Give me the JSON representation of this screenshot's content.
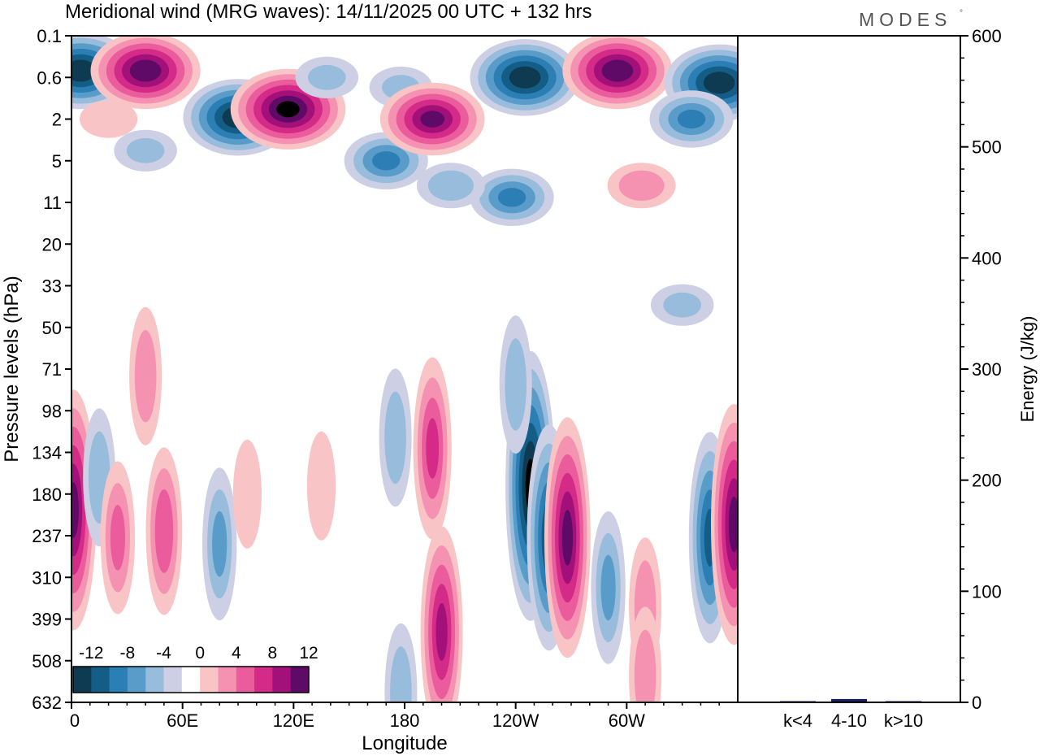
{
  "brand": "MODES",
  "brand_mark": "°",
  "chart_data": [
    {
      "type": "heatmap",
      "title": "Meridional wind (MRG waves):  14/11/2025  00 UTC  + 132 hrs",
      "xlabel": "Longitude",
      "ylabel": "Pressure levels (hPa)",
      "x_ticks": [
        "0",
        "60E",
        "120E",
        "180",
        "120W",
        "60W"
      ],
      "y_ticks": [
        "0.1",
        "0.6",
        "2",
        "5",
        "11",
        "20",
        "33",
        "50",
        "71",
        "98",
        "134",
        "180",
        "237",
        "310",
        "399",
        "508",
        "632"
      ],
      "colorbar": {
        "tick_labels": [
          "-12",
          "-8",
          "-4",
          "0",
          "4",
          "8",
          "12"
        ],
        "levels": [
          -14,
          -12,
          -10,
          -8,
          -6,
          -4,
          -2,
          2,
          4,
          6,
          8,
          10,
          12,
          14
        ],
        "colors": [
          "#0e3a52",
          "#145d86",
          "#2b7fb4",
          "#5a9cc9",
          "#98bcdb",
          "#cdd0e5",
          "#ffffff",
          "#f8c4c6",
          "#f592b2",
          "#ea5c9b",
          "#d42a88",
          "#a3107a",
          "#5e0a66"
        ]
      },
      "features": [
        {
          "lon": 5,
          "lev": 0.45,
          "value": -13
        },
        {
          "lon": 40,
          "lev": 0.45,
          "value": 13
        },
        {
          "lon": 90,
          "lev": 1.9,
          "value": -13
        },
        {
          "lon": 117,
          "lev": 1.5,
          "value": 14
        },
        {
          "lon": 138,
          "lev": 0.6,
          "value": -4
        },
        {
          "lon": 170,
          "lev": 5,
          "value": -8
        },
        {
          "lon": 178,
          "lev": 0.8,
          "value": -4
        },
        {
          "lon": 195,
          "lev": 2,
          "value": 12
        },
        {
          "lon": 245,
          "lev": 0.6,
          "value": -13
        },
        {
          "lon": 295,
          "lev": 0.45,
          "value": 13
        },
        {
          "lon": 350,
          "lev": 0.7,
          "value": -13
        },
        {
          "lon": 335,
          "lev": 2,
          "value": -8
        },
        {
          "lon": 308,
          "lev": 8,
          "value": 5
        },
        {
          "lon": 238,
          "lev": 10,
          "value": -8
        },
        {
          "lon": 205,
          "lev": 8,
          "value": -5
        },
        {
          "lon": 40,
          "lev": 4,
          "value": -4
        },
        {
          "lon": 20,
          "lev": 2,
          "value": 3
        },
        {
          "lon": 40,
          "lev": 75,
          "value": 5
        },
        {
          "lon": 248,
          "lev": 170,
          "value": -14
        },
        {
          "lon": 258,
          "lev": 240,
          "value": -11
        },
        {
          "lon": 268,
          "lev": 240,
          "value": 12
        },
        {
          "lon": 195,
          "lev": 130,
          "value": 8
        },
        {
          "lon": 200,
          "lev": 430,
          "value": 10
        },
        {
          "lon": 175,
          "lev": 120,
          "value": -5
        },
        {
          "lon": 290,
          "lev": 330,
          "value": -6
        },
        {
          "lon": 310,
          "lev": 370,
          "value": 5
        },
        {
          "lon": 345,
          "lev": 240,
          "value": -10
        },
        {
          "lon": 358,
          "lev": 220,
          "value": 12
        },
        {
          "lon": 1,
          "lev": 200,
          "value": 12
        },
        {
          "lon": 15,
          "lev": 160,
          "value": -5
        },
        {
          "lon": 25,
          "lev": 240,
          "value": 6
        },
        {
          "lon": 50,
          "lev": 230,
          "value": 7
        },
        {
          "lon": 80,
          "lev": 250,
          "value": -6
        },
        {
          "lon": 95,
          "lev": 180,
          "value": 3
        },
        {
          "lon": 135,
          "lev": 170,
          "value": 3
        },
        {
          "lon": 330,
          "lev": 40,
          "value": -4
        },
        {
          "lon": 240,
          "lev": 80,
          "value": -5
        },
        {
          "lon": 310,
          "lev": 550,
          "value": 5
        },
        {
          "lon": 178,
          "lev": 600,
          "value": -5
        }
      ]
    },
    {
      "type": "bar",
      "ylabel": "Energy (J/kg)",
      "categories": [
        "k<4",
        "4-10",
        "k>10"
      ],
      "values": [
        0.5,
        3,
        0.5
      ],
      "ylim": [
        0,
        600
      ],
      "y_ticks": [
        "0",
        "100",
        "200",
        "300",
        "400",
        "500",
        "600"
      ],
      "bar_color": "#1c1f5e"
    }
  ]
}
